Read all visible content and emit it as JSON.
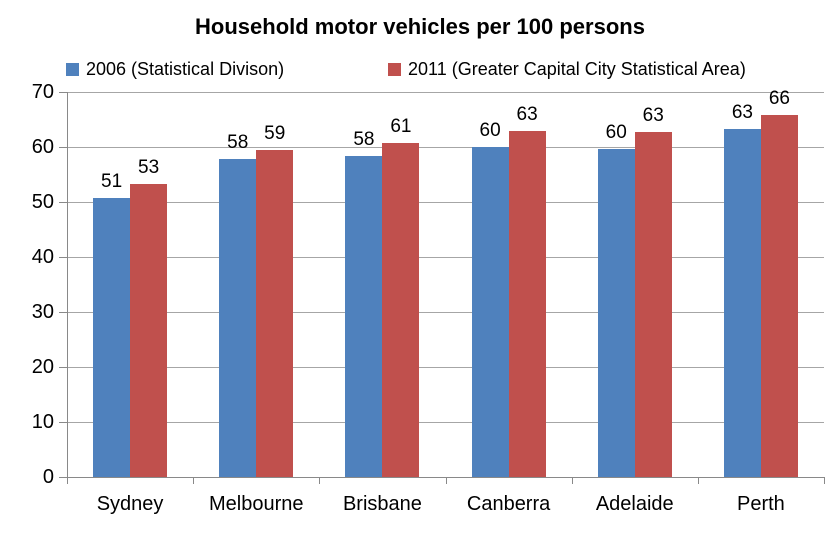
{
  "chart_data": {
    "type": "bar",
    "title": "Household motor vehicles per 100 persons",
    "categories": [
      "Sydney",
      "Melbourne",
      "Brisbane",
      "Canberra",
      "Adelaide",
      "Perth"
    ],
    "series": [
      {
        "name": "2006 (Statistical Divison)",
        "color": "#4F81BD",
        "values": [
          50.8,
          57.8,
          58.4,
          60.0,
          59.7,
          63.2
        ],
        "labels": [
          "51",
          "58",
          "58",
          "60",
          "60",
          "63"
        ]
      },
      {
        "name": "2011 (Greater Capital City Statistical Area)",
        "color": "#C0504D",
        "values": [
          53.2,
          59.4,
          60.7,
          63.0,
          62.7,
          65.8
        ],
        "labels": [
          "53",
          "59",
          "61",
          "63",
          "63",
          "66"
        ]
      }
    ],
    "xlabel": "",
    "ylabel": "",
    "ylim": [
      0,
      70
    ],
    "yticks": [
      0,
      10,
      20,
      30,
      40,
      50,
      60,
      70
    ],
    "grid": true,
    "legend_position": "top"
  },
  "colors": {
    "background": "#FFFFFF",
    "gridline": "#A6A6A6",
    "axis": "#898989",
    "text": "#000000",
    "series_2006": "#4F81BD",
    "series_2011": "#C0504D"
  }
}
